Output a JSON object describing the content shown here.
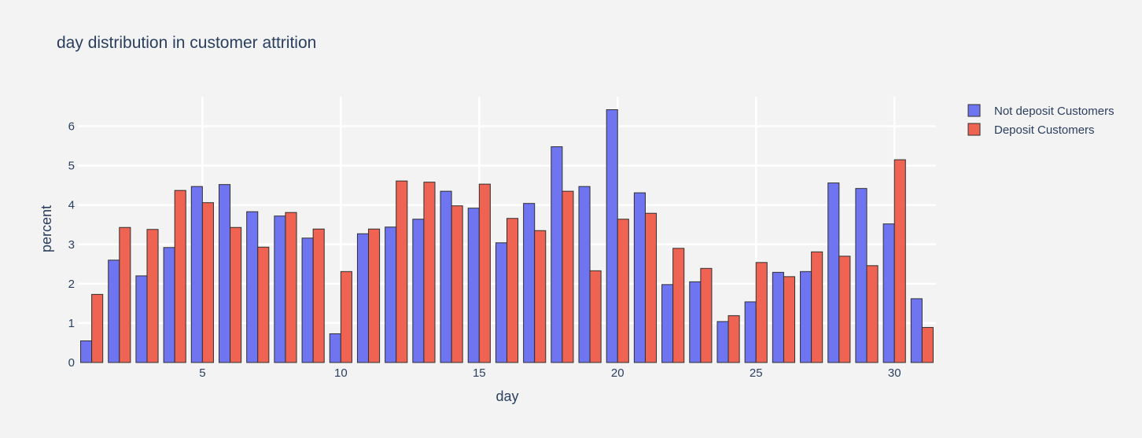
{
  "chart_data": {
    "type": "bar",
    "title": "day distribution in customer attrition",
    "xlabel": "day",
    "ylabel": "percent",
    "x": [
      1,
      2,
      3,
      4,
      5,
      6,
      7,
      8,
      9,
      10,
      11,
      12,
      13,
      14,
      15,
      16,
      17,
      18,
      19,
      20,
      21,
      22,
      23,
      24,
      25,
      26,
      27,
      28,
      29,
      30,
      31
    ],
    "xlim": [
      0.5,
      31.5
    ],
    "ylim": [
      0,
      6.75
    ],
    "xticks": [
      5,
      10,
      15,
      20,
      25,
      30
    ],
    "yticks": [
      0,
      1,
      2,
      3,
      4,
      5,
      6
    ],
    "grid": true,
    "legend_position": "top-right",
    "series": [
      {
        "name": "Not deposit Customers",
        "color": "#6f74f0",
        "values": [
          0.55,
          2.6,
          2.2,
          2.92,
          4.47,
          4.52,
          3.83,
          3.72,
          3.16,
          0.73,
          3.27,
          3.44,
          3.64,
          4.35,
          3.92,
          3.04,
          4.04,
          5.48,
          4.47,
          6.42,
          4.31,
          1.98,
          2.05,
          1.04,
          1.54,
          2.29,
          2.31,
          4.56,
          4.42,
          3.52,
          1.62
        ]
      },
      {
        "name": "Deposit Customers",
        "color": "#ee6352",
        "values": [
          1.73,
          3.43,
          3.38,
          4.37,
          4.06,
          3.43,
          2.93,
          3.81,
          3.39,
          2.31,
          3.39,
          4.61,
          4.58,
          3.98,
          4.53,
          3.66,
          3.35,
          4.35,
          2.33,
          3.64,
          3.79,
          2.9,
          2.39,
          1.19,
          2.54,
          2.18,
          2.81,
          2.7,
          2.46,
          5.15,
          0.89
        ]
      }
    ]
  }
}
